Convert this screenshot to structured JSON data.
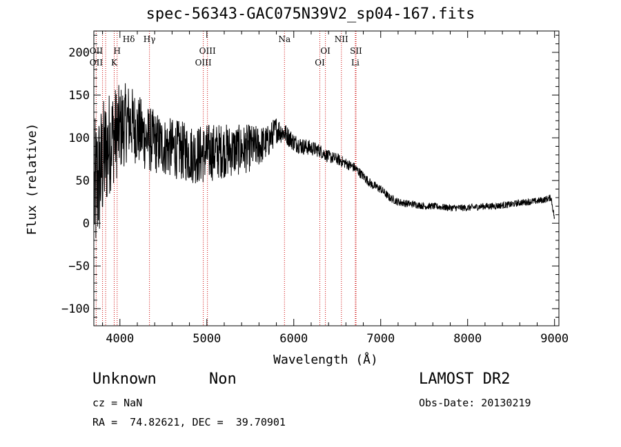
{
  "title": "spec-56343-GAC075N39V2_sp04-167.fits",
  "info": {
    "class_label": "Unknown",
    "subclass_label": "Non",
    "cz_text": "cz = NaN",
    "radec_text": "RA =  74.82621, DEC =  39.70901",
    "survey": "LAMOST DR2",
    "obs_date": "Obs-Date: 20130219"
  },
  "chart_data": {
    "type": "line",
    "title": "spec-56343-GAC075N39V2_sp04-167.fits",
    "xlabel": "Wavelength (Å)",
    "ylabel": "Flux (relative)",
    "xlim": [
      3700,
      9050
    ],
    "ylim": [
      -120,
      225
    ],
    "xticks": [
      4000,
      5000,
      6000,
      7000,
      8000,
      9000
    ],
    "yticks": [
      -100,
      -50,
      0,
      50,
      100,
      150,
      200
    ],
    "line_color": "#000000",
    "marker_color": "#cc0000",
    "line_markers": [
      {
        "label": "Hδ",
        "wave": 4102,
        "row": 1
      },
      {
        "label": "Hγ",
        "wave": 4340,
        "row": 1
      },
      {
        "label": "Na",
        "wave": 5893,
        "row": 1
      },
      {
        "label": "NII",
        "wave": 6548,
        "row": 1
      },
      {
        "label": "OII",
        "wave": 3727,
        "row": 2
      },
      {
        "label": "H",
        "wave": 3968,
        "row": 2
      },
      {
        "label": "OIII",
        "wave": 5007,
        "row": 2
      },
      {
        "label": "OI",
        "wave": 6364,
        "row": 2
      },
      {
        "label": "SII",
        "wave": 6716,
        "row": 2
      },
      {
        "label": "OII",
        "wave": 3727,
        "row": 3
      },
      {
        "label": "K",
        "wave": 3934,
        "row": 3
      },
      {
        "label": "OIII",
        "wave": 4959,
        "row": 3
      },
      {
        "label": "OI",
        "wave": 6300,
        "row": 3
      },
      {
        "label": "Li",
        "wave": 6708,
        "row": 3
      }
    ],
    "marker_lines": [
      3727,
      3800,
      3836,
      3934,
      3968,
      4340,
      4959,
      5007,
      5893,
      6300,
      6364,
      6548,
      6708,
      6716
    ],
    "spectrum_anchors": {
      "x": [
        3700,
        3800,
        3900,
        4000,
        4100,
        4200,
        4300,
        4400,
        4500,
        4600,
        4700,
        4800,
        4900,
        5000,
        5100,
        5200,
        5300,
        5400,
        5500,
        5600,
        5700,
        5800,
        5900,
        6000,
        6100,
        6200,
        6300,
        6400,
        6500,
        6600,
        6700,
        6800,
        6900,
        7000,
        7100,
        7200,
        7300,
        7400,
        7500,
        7600,
        7700,
        7800,
        7900,
        8000,
        8100,
        8200,
        8300,
        8400,
        8500,
        8600,
        8700,
        8800,
        8900,
        8960,
        9000
      ],
      "y": [
        30,
        70,
        100,
        110,
        120,
        110,
        100,
        95,
        90,
        88,
        85,
        82,
        80,
        82,
        84,
        85,
        85,
        86,
        88,
        90,
        95,
        110,
        105,
        95,
        90,
        88,
        85,
        78,
        75,
        70,
        65,
        55,
        45,
        40,
        30,
        25,
        23,
        22,
        20,
        20,
        19,
        18,
        18,
        18,
        19,
        20,
        20,
        21,
        22,
        24,
        25,
        26,
        28,
        30,
        5
      ]
    },
    "spectrum_noise": {
      "x": [
        3700,
        3900,
        4100,
        4500,
        5000,
        5500,
        5900,
        6300,
        6700,
        7000,
        7500,
        9000
      ],
      "amp": [
        90,
        60,
        45,
        35,
        35,
        28,
        12,
        8,
        6,
        5,
        4,
        4
      ]
    }
  }
}
